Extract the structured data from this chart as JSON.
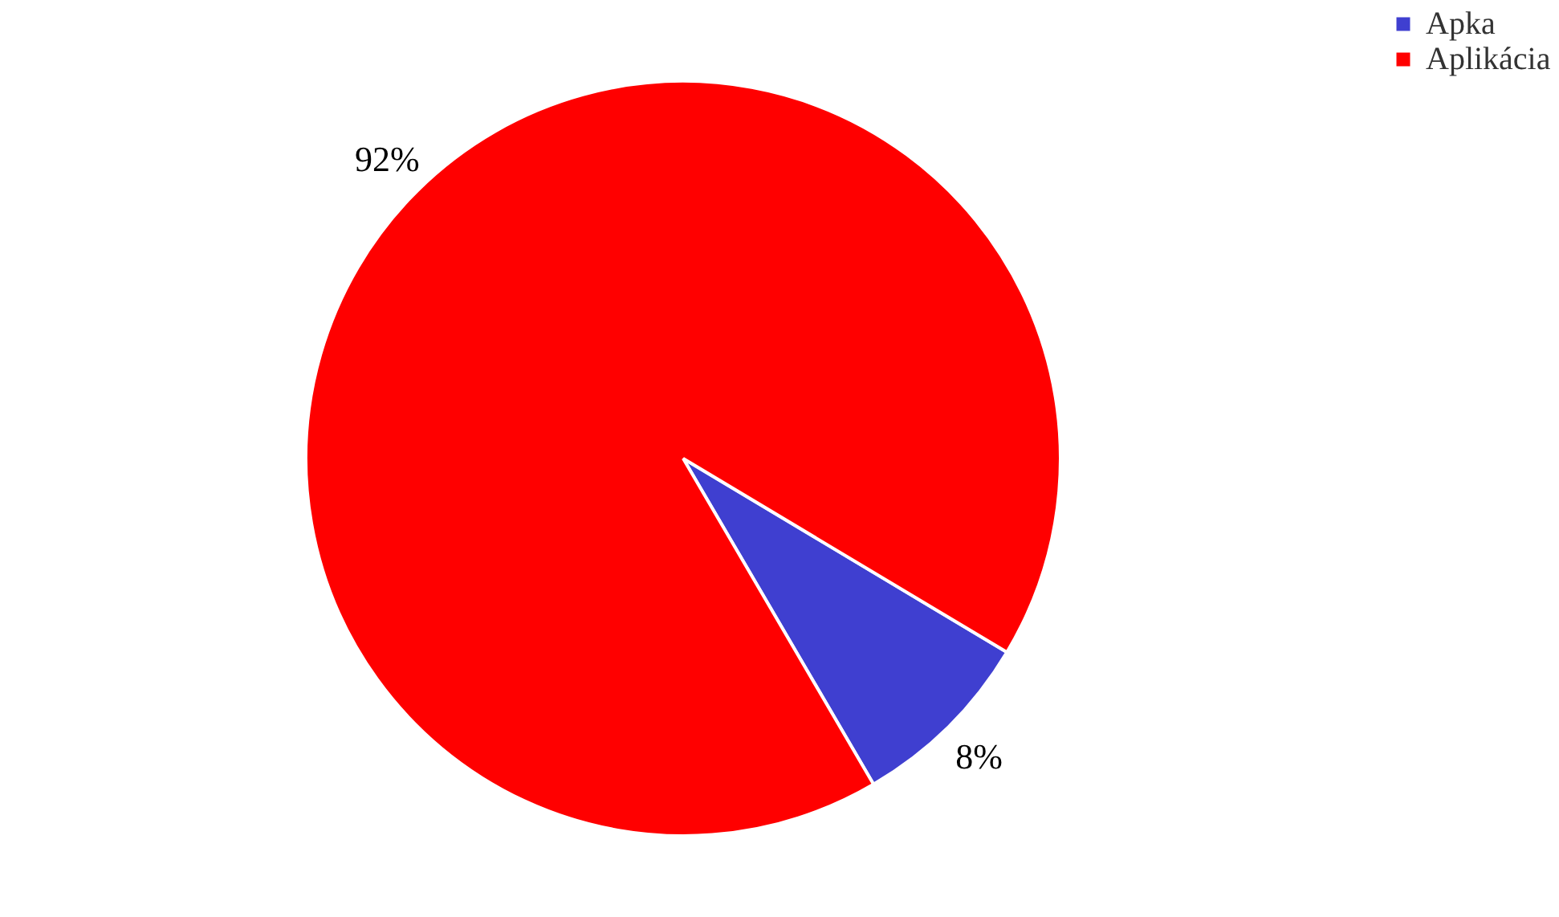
{
  "chart_data": {
    "type": "pie",
    "categories": [
      "Apka",
      "Aplikácia"
    ],
    "values": [
      8,
      92
    ],
    "colors": [
      "#3f3fd0",
      "#ff0000"
    ],
    "value_labels": [
      "8%",
      "92%"
    ],
    "legend": "right"
  }
}
